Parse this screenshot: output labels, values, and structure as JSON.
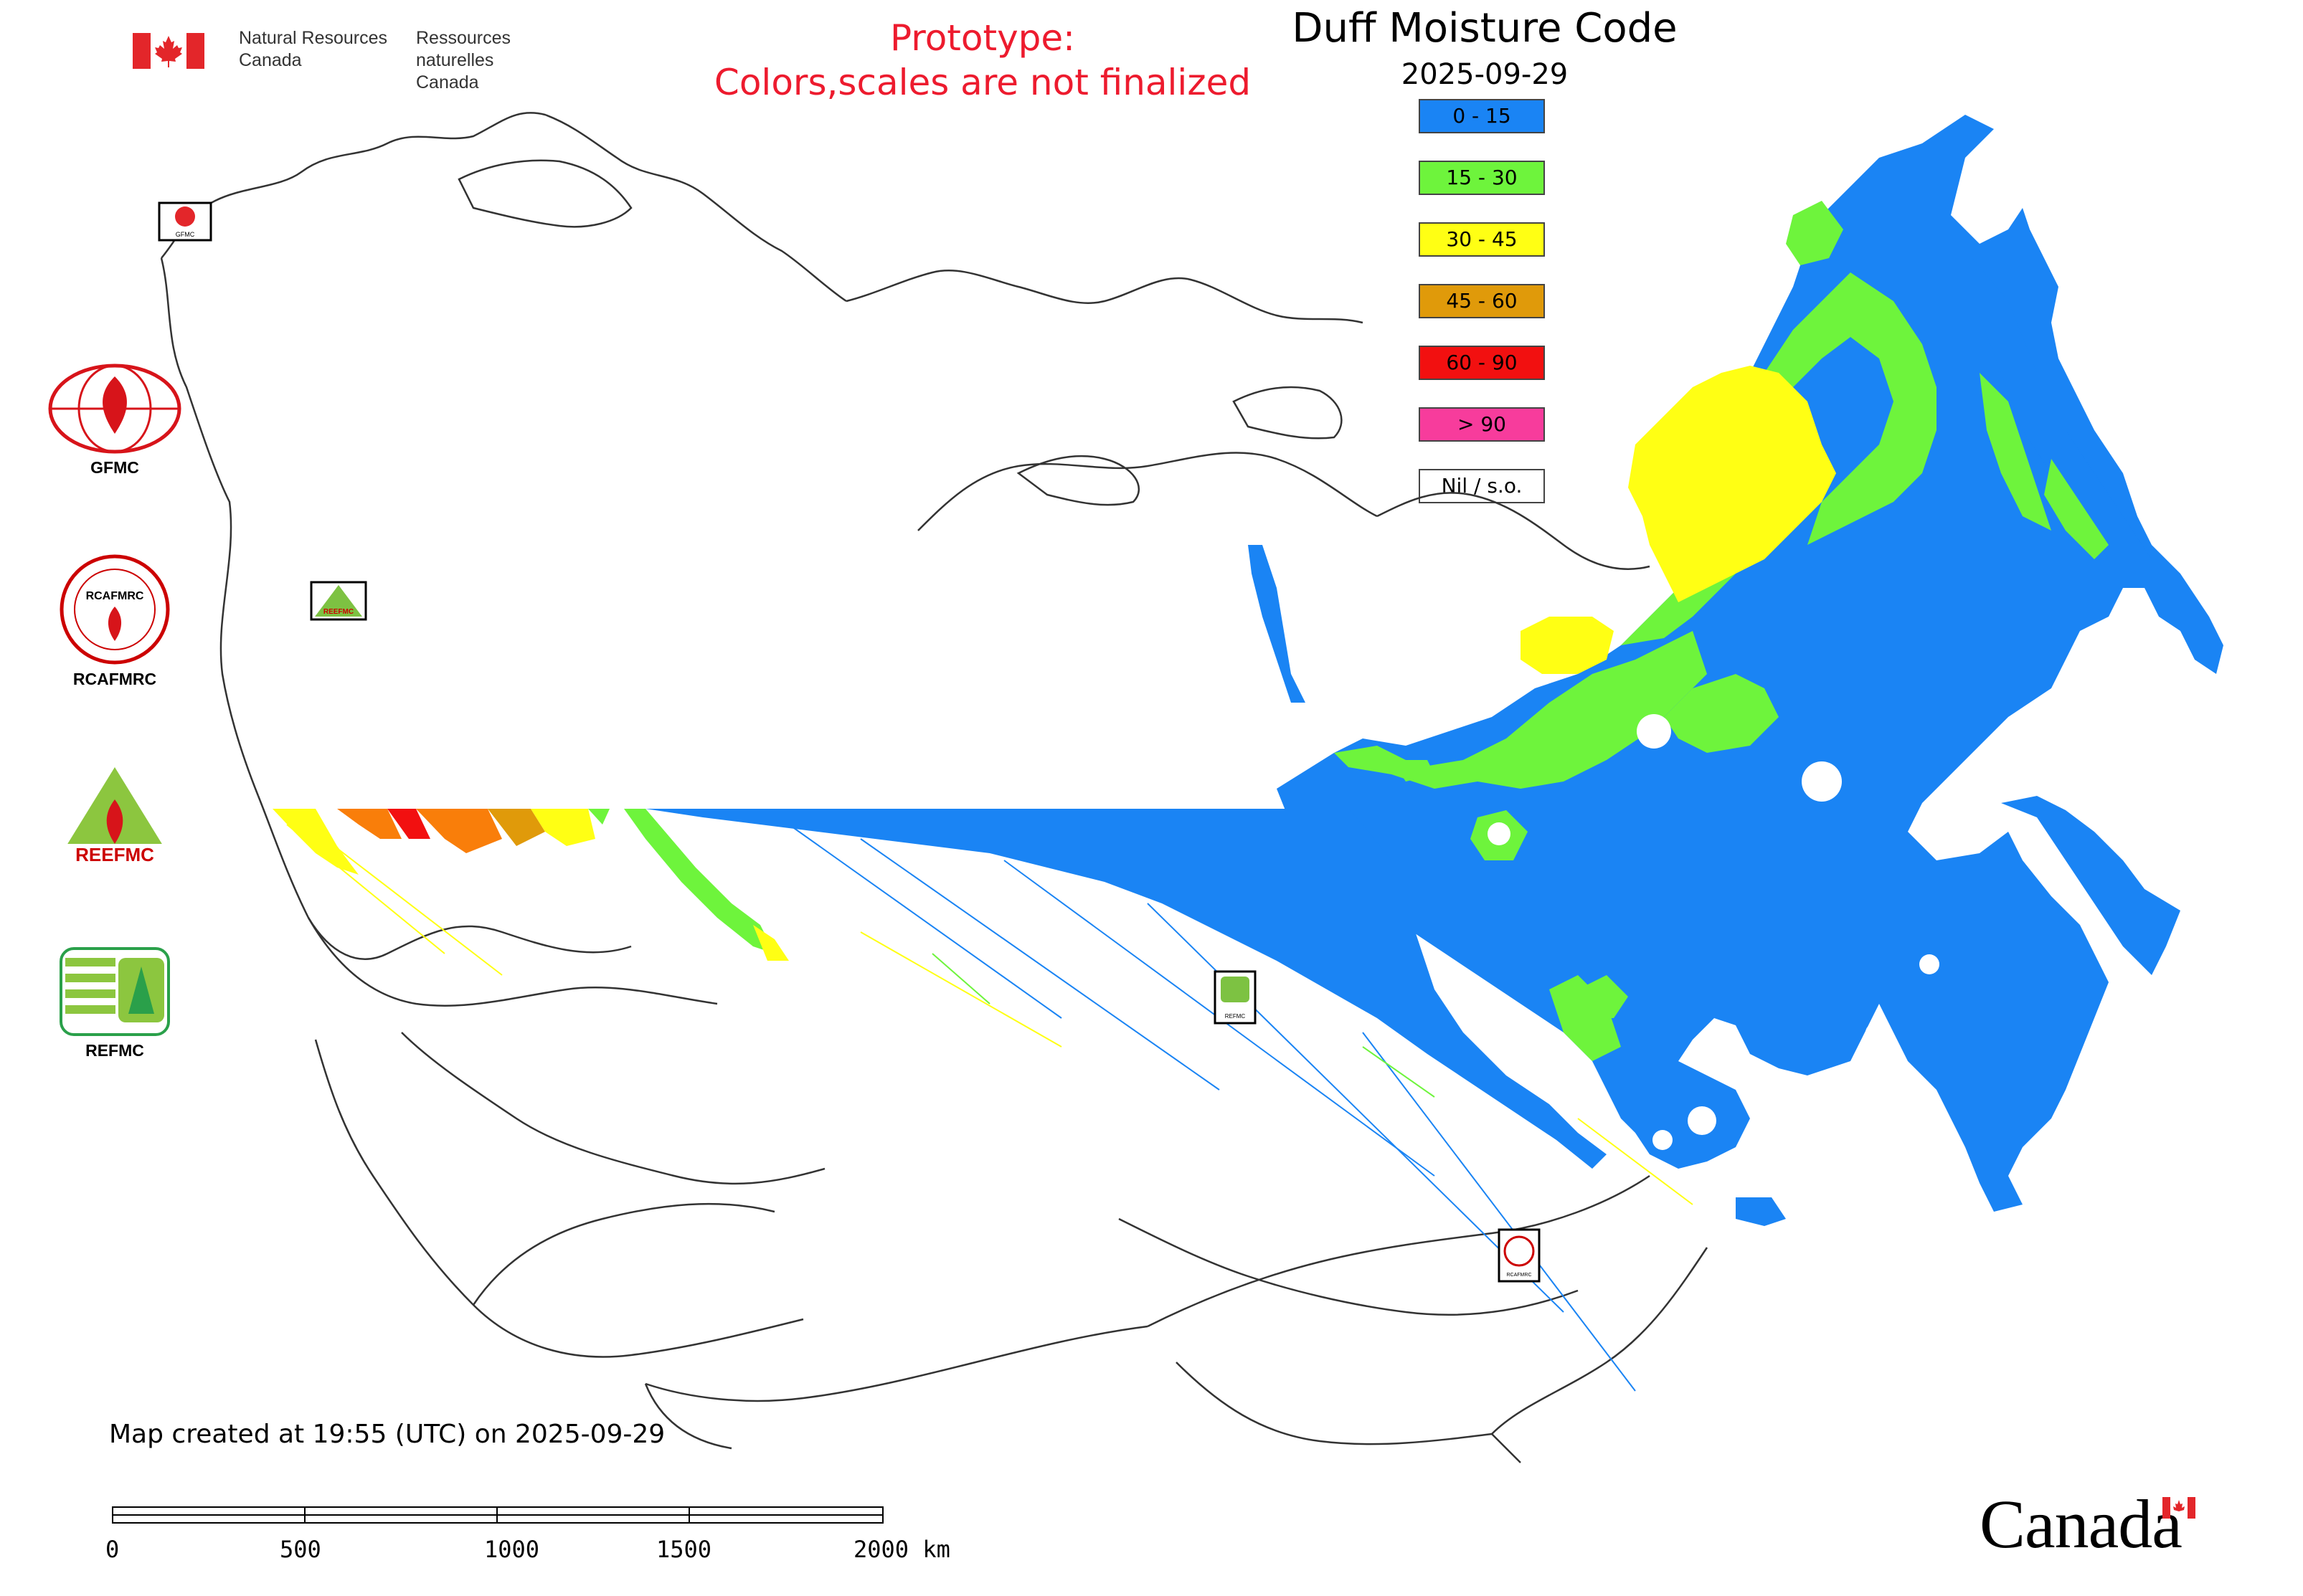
{
  "header": {
    "agency_en_line1": "Natural Resources",
    "agency_en_line2": "Canada",
    "agency_fr_line1": "Ressources naturelles",
    "agency_fr_line2": "Canada",
    "prototype_line1": "Prototype:",
    "prototype_line2": "Colors,scales are not finalized"
  },
  "map": {
    "title": "Duff Moisture Code",
    "date": "2025-09-29",
    "legend": [
      {
        "label": "0 - 15",
        "color": "#1a84f4"
      },
      {
        "label": "15 - 30",
        "color": "#6ef43c"
      },
      {
        "label": "30 - 45",
        "color": "#ffff14"
      },
      {
        "label": "45 - 60",
        "color": "#e09a0a"
      },
      {
        "label": "60 - 90",
        "color": "#f21010"
      },
      {
        "label": "> 90",
        "color": "#f73c9c"
      },
      {
        "label": "Nil / s.o.",
        "color": "#ffffff"
      }
    ],
    "created_text": "Map created at 19:55 (UTC) on 2025-09-29",
    "scale_labels": [
      "0",
      "500",
      "1000",
      "1500",
      "2000 km"
    ],
    "inset_labels": [
      "GFMC",
      "REEFMC",
      "REFMC",
      "RCAFMRC"
    ]
  },
  "logos": {
    "gfmc": "GFMC",
    "rcafmrc": "RCAFMRC",
    "rcafmrc_ring": "RCAFMRC",
    "reefmc": "REEFMC",
    "refmc": "REFMC"
  },
  "footer": {
    "wordmark": "Canada"
  },
  "colors": {
    "prototype_red": "#ed1b2e",
    "outline": "#333333"
  }
}
